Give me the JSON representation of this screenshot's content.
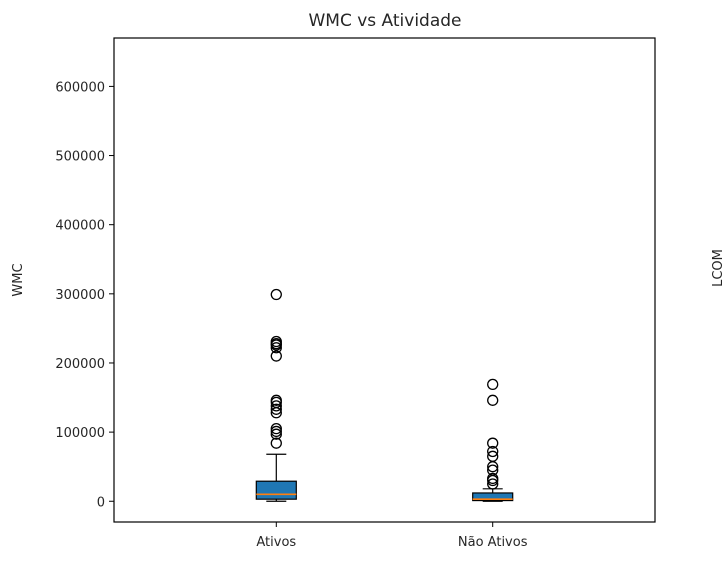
{
  "chart_data": {
    "type": "box",
    "title": "WMC vs Atividade",
    "xlabel": "",
    "ylabel": "WMC",
    "categories": [
      "Ativos",
      "Não Ativos"
    ],
    "ylim": [
      -30000,
      670000
    ],
    "yticks": [
      0,
      100000,
      200000,
      300000,
      400000,
      500000,
      600000
    ],
    "grid": false,
    "box_color": "#1f77b4",
    "median_color": "#ff7f0e",
    "boxes": [
      {
        "category": "Ativos",
        "whisker_low": 0,
        "q1": 3000,
        "median": 10000,
        "q3": 29000,
        "whisker_high": 68000,
        "outliers": [
          84000,
          97000,
          101000,
          105000,
          128000,
          133000,
          138000,
          143000,
          146000,
          210000,
          222000,
          226000,
          228000,
          231000,
          299000
        ]
      },
      {
        "category": "Não Ativos",
        "whisker_low": 0,
        "q1": 1000,
        "median": 3000,
        "q3": 12000,
        "whisker_high": 18000,
        "outliers": [
          25000,
          30000,
          33000,
          45000,
          50000,
          65000,
          72000,
          84000,
          146000,
          169000
        ]
      }
    ]
  },
  "clipped_label": "LCOM"
}
